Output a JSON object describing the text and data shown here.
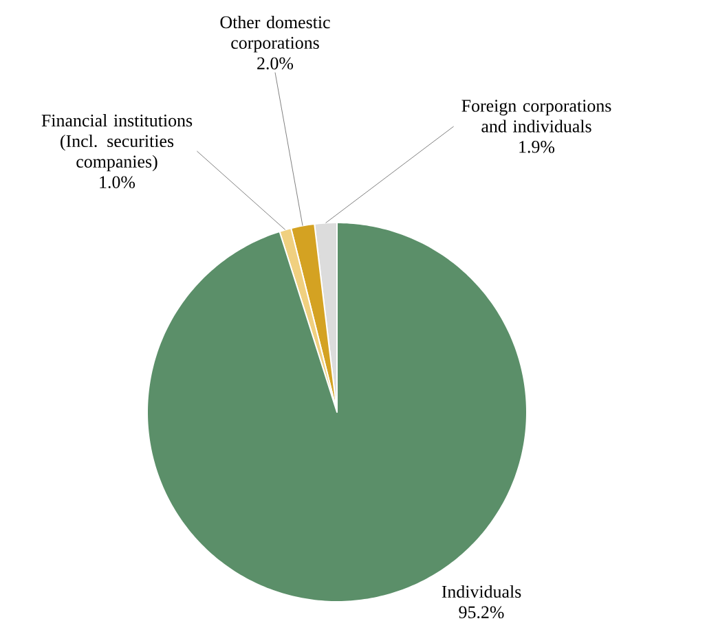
{
  "chart_data": {
    "type": "pie",
    "categories": [
      "Foreign corporations and individuals",
      "Other domestic corporations",
      "Financial institutions (Incl. securities companies)",
      "Individuals"
    ],
    "values": [
      1.9,
      2.0,
      1.0,
      95.2
    ],
    "value_labels": [
      "1.9%",
      "2.0%",
      "1.0%",
      "95.2%"
    ],
    "colors": [
      "#dcdcdc",
      "#d4a222",
      "#f0d080",
      "#5b8f69"
    ]
  }
}
